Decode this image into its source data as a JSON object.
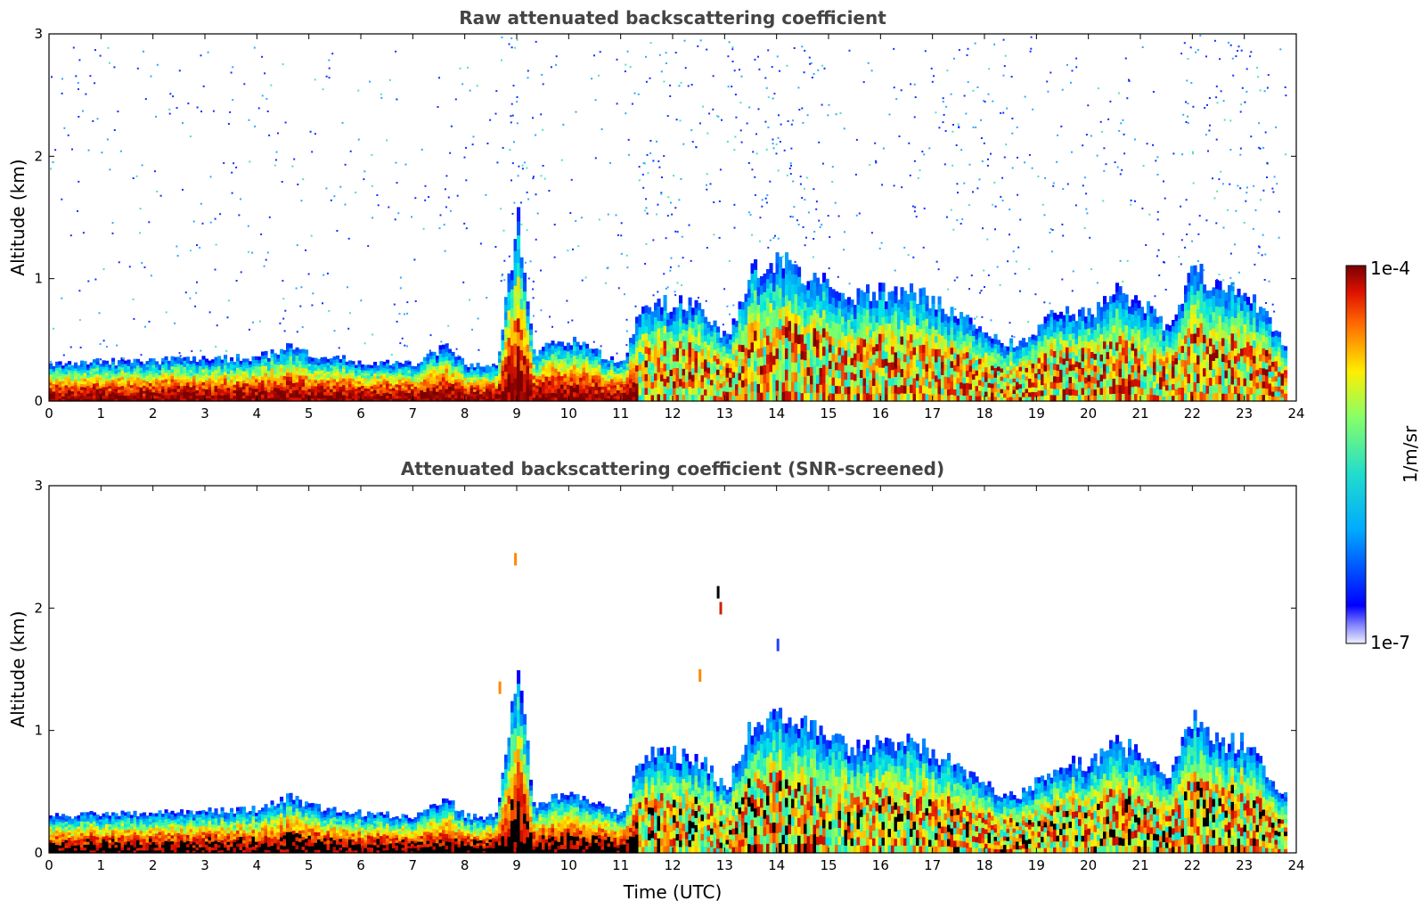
{
  "chart_data": [
    {
      "type": "heatmap",
      "title": "Raw attenuated backscattering coefficient",
      "xlabel": "",
      "ylabel": "Altitude (km)",
      "xlim": [
        0,
        24
      ],
      "ylim": [
        0,
        3
      ],
      "x_ticks": [
        "0",
        "1",
        "2",
        "3",
        "4",
        "5",
        "6",
        "7",
        "8",
        "9",
        "10",
        "11",
        "12",
        "13",
        "14",
        "15",
        "16",
        "17",
        "18",
        "19",
        "20",
        "21",
        "22",
        "23",
        "24"
      ],
      "y_ticks": [
        "0",
        "1",
        "2",
        "3"
      ],
      "screened": false,
      "colorscale": "jet",
      "boundary_layer_top_km": [
        [
          0,
          0.3
        ],
        [
          1,
          0.32
        ],
        [
          2,
          0.33
        ],
        [
          3,
          0.34
        ],
        [
          4,
          0.36
        ],
        [
          4.6,
          0.45
        ],
        [
          5,
          0.38
        ],
        [
          6,
          0.32
        ],
        [
          7,
          0.3
        ],
        [
          7.6,
          0.45
        ],
        [
          8,
          0.3
        ],
        [
          8.6,
          0.3
        ],
        [
          9,
          1.5
        ],
        [
          9.3,
          0.4
        ],
        [
          10,
          0.5
        ],
        [
          11,
          0.3
        ],
        [
          11.4,
          0.8
        ],
        [
          12,
          0.8
        ],
        [
          12.6,
          0.75
        ],
        [
          13,
          0.5
        ],
        [
          13.5,
          1.05
        ],
        [
          14,
          1.15
        ],
        [
          14.5,
          1.05
        ],
        [
          15,
          0.95
        ],
        [
          15.5,
          0.85
        ],
        [
          16,
          0.9
        ],
        [
          16.6,
          0.9
        ],
        [
          17,
          0.8
        ],
        [
          17.5,
          0.7
        ],
        [
          18,
          0.55
        ],
        [
          18.6,
          0.45
        ],
        [
          19,
          0.6
        ],
        [
          19.5,
          0.75
        ],
        [
          20,
          0.7
        ],
        [
          20.5,
          0.9
        ],
        [
          21,
          0.8
        ],
        [
          21.5,
          0.6
        ],
        [
          22,
          1.1
        ],
        [
          22.5,
          0.9
        ],
        [
          23,
          0.9
        ],
        [
          23.8,
          0.45
        ]
      ],
      "noise_bands_hours": [
        [
          8.6,
          9.4
        ],
        [
          11.4,
          13.3
        ],
        [
          13.6,
          14.9
        ],
        [
          17.3,
          19.0
        ],
        [
          21.8,
          23.5
        ]
      ]
    },
    {
      "type": "heatmap",
      "title": "Attenuated backscattering coefficient (SNR-screened)",
      "xlabel": "Time (UTC)",
      "ylabel": "Altitude (km)",
      "xlim": [
        0,
        24
      ],
      "ylim": [
        0,
        3
      ],
      "x_ticks": [
        "0",
        "1",
        "2",
        "3",
        "4",
        "5",
        "6",
        "7",
        "8",
        "9",
        "10",
        "11",
        "12",
        "13",
        "14",
        "15",
        "16",
        "17",
        "18",
        "19",
        "20",
        "21",
        "22",
        "23",
        "24"
      ],
      "y_ticks": [
        "0",
        "1",
        "2",
        "3"
      ],
      "screened": true,
      "colorscale": "jet",
      "boundary_layer_top_km": [
        [
          0,
          0.3
        ],
        [
          1,
          0.32
        ],
        [
          2,
          0.33
        ],
        [
          3,
          0.34
        ],
        [
          4,
          0.36
        ],
        [
          4.6,
          0.45
        ],
        [
          5,
          0.38
        ],
        [
          6,
          0.32
        ],
        [
          7,
          0.3
        ],
        [
          7.6,
          0.45
        ],
        [
          8,
          0.3
        ],
        [
          8.6,
          0.3
        ],
        [
          9,
          1.5
        ],
        [
          9.3,
          0.4
        ],
        [
          10,
          0.5
        ],
        [
          11,
          0.3
        ],
        [
          11.4,
          0.8
        ],
        [
          12,
          0.8
        ],
        [
          12.6,
          0.75
        ],
        [
          13,
          0.5
        ],
        [
          13.5,
          1.05
        ],
        [
          14,
          1.15
        ],
        [
          14.5,
          1.05
        ],
        [
          15,
          0.95
        ],
        [
          15.5,
          0.85
        ],
        [
          16,
          0.9
        ],
        [
          16.6,
          0.9
        ],
        [
          17,
          0.8
        ],
        [
          17.5,
          0.7
        ],
        [
          18,
          0.55
        ],
        [
          18.6,
          0.45
        ],
        [
          19,
          0.6
        ],
        [
          19.5,
          0.75
        ],
        [
          20,
          0.7
        ],
        [
          20.5,
          0.9
        ],
        [
          21,
          0.8
        ],
        [
          21.5,
          0.6
        ],
        [
          22,
          1.1
        ],
        [
          22.5,
          0.9
        ],
        [
          23,
          0.9
        ],
        [
          23.8,
          0.45
        ]
      ]
    }
  ],
  "colorbar": {
    "max_label": "1e-4",
    "min_label": "1e-7",
    "unit_label": "1/m/sr",
    "scale": "log"
  }
}
